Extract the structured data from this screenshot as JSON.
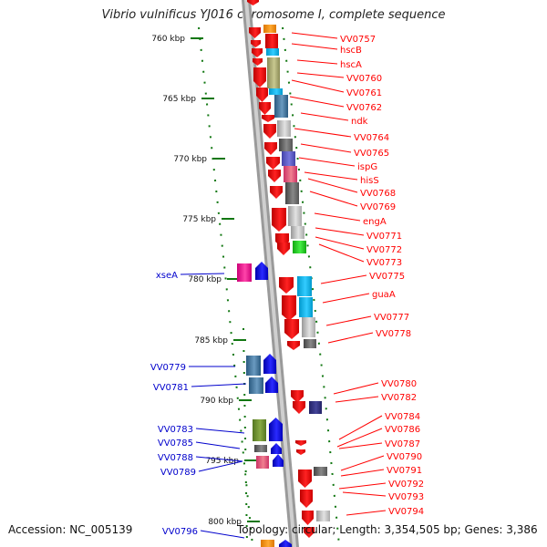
{
  "title": "Vibrio vulnificus YJ016 chromosome I, complete sequence",
  "accession_text": "Accession: NC_005139",
  "topology_text": "Topology: circular; Length: 3,354,505 bp; Genes: 3,386",
  "colors": {
    "forward_label": "#ff0000",
    "reverse_label": "#0000cc",
    "tick": "#117711",
    "backbone": "#888888"
  },
  "ticks": [
    "760 kbp",
    "765 kbp",
    "770 kbp",
    "775 kbp",
    "780 kbp",
    "785 kbp",
    "790 kbp",
    "795 kbp",
    "800 kbp"
  ],
  "forward_genes": [
    "VV0757",
    "hscB",
    "hscA",
    "VV0760",
    "VV0761",
    "VV0762",
    "ndk",
    "VV0764",
    "VV0765",
    "ispG",
    "hisS",
    "VV0768",
    "VV0769",
    "engA",
    "VV0771",
    "VV0772",
    "VV0773",
    "VV0775",
    "guaA",
    "VV0777",
    "VV0778",
    "VV0780",
    "VV0782",
    "VV0784",
    "VV0786",
    "VV0787",
    "VV0790",
    "VV0791",
    "VV0792",
    "VV0793",
    "VV0794"
  ],
  "reverse_genes": [
    "xseA",
    "VV0779",
    "VV0781",
    "VV0783",
    "VV0785",
    "VV0788",
    "VV0789",
    "VV0796"
  ]
}
